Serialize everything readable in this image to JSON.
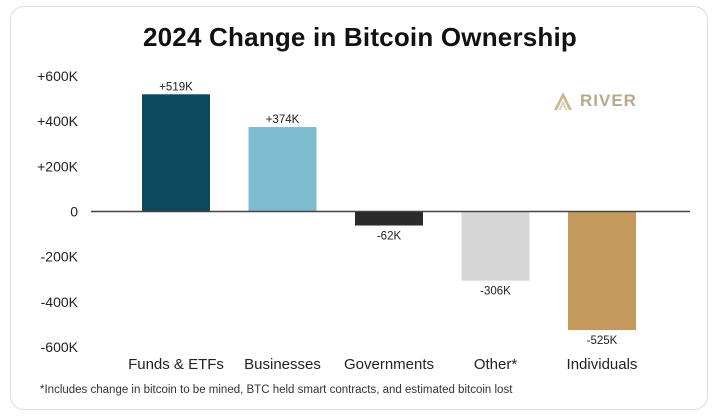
{
  "chart_data": {
    "type": "bar",
    "title": "2024 Change in Bitcoin Ownership",
    "categories": [
      "Funds & ETFs",
      "Businesses",
      "Governments",
      "Other*",
      "Individuals"
    ],
    "values": [
      519,
      374,
      -62,
      -306,
      -525
    ],
    "data_labels": [
      "+519K",
      "+374K",
      "-62K",
      "-306K",
      "-525K"
    ],
    "colors": [
      "#0d4a5e",
      "#7dbcce",
      "#2b2b2b",
      "#d6d6d6",
      "#c49a5c"
    ],
    "ylim": [
      -600,
      600
    ],
    "yticks": [
      600,
      400,
      200,
      0,
      -200,
      -400,
      -600
    ],
    "ytick_labels": [
      "+600K",
      "+400K",
      "+200K",
      "0",
      "-200K",
      "-400K",
      "-600K"
    ],
    "xlabel": "",
    "ylabel": "",
    "grid": false
  },
  "footnote": "*Includes change in bitcoin to be mined, BTC held smart contracts, and estimated bitcoin lost",
  "brand": {
    "name": "RIVER",
    "icon": "river-logo-icon",
    "color": "#b8a98a"
  }
}
